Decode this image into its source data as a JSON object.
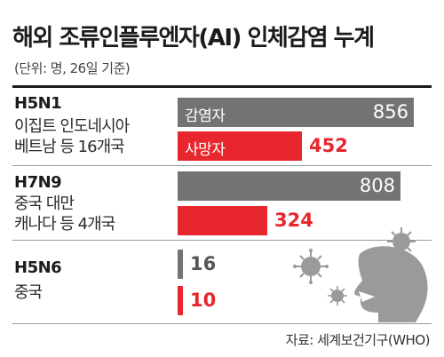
{
  "title": "해외 조류인플루엔자(AI) 인체감염 누계",
  "subtitle": "(단위: 명, 26일 기준)",
  "source": "자료: 세계보건기구(WHO)",
  "colors": {
    "infected": "#737373",
    "deaths": "#e8262e"
  },
  "icons": {
    "illustration": "virus-and-coughing-head-icon"
  },
  "chart_data": {
    "type": "bar",
    "orientation": "horizontal",
    "unit": "명",
    "xlim": [
      0,
      856
    ],
    "groups": [
      {
        "strain": "H5N1",
        "countries": [
          "이집트 인도네시아",
          "베트남 등 16개국"
        ],
        "infected": 856,
        "deaths": 452
      },
      {
        "strain": "H7N9",
        "countries": [
          "중국 대만",
          "캐나다 등 4개국"
        ],
        "infected": 808,
        "deaths": 324
      },
      {
        "strain": "H5N6",
        "countries": [
          "중국"
        ],
        "infected": 16,
        "deaths": 10
      }
    ],
    "series": [
      {
        "name": "감염자",
        "key": "infected"
      },
      {
        "name": "사망자",
        "key": "deaths"
      }
    ]
  }
}
